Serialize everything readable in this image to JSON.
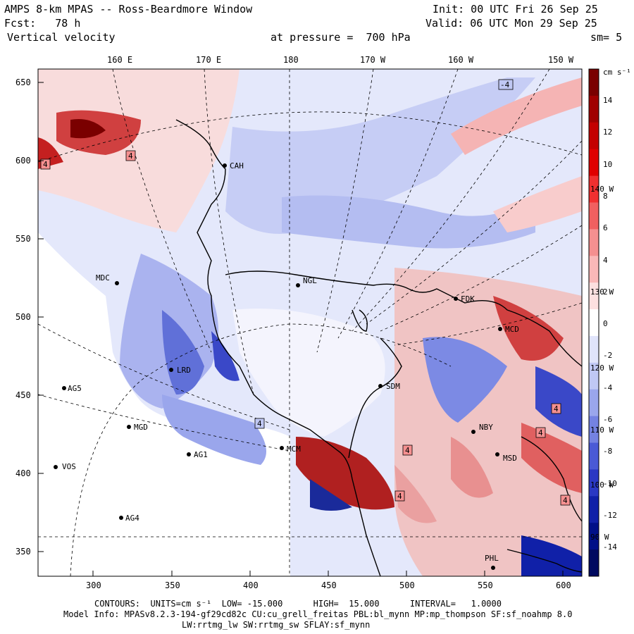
{
  "header": {
    "title": "AMPS 8-km MPAS -- Ross-Beardmore Window",
    "init": "Init: 00 UTC Fri 26 Sep 25",
    "fcst": "Fcst:   78 h",
    "valid": "Valid: 06 UTC Mon 29 Sep 25",
    "field": "Vertical velocity",
    "pressure": "at pressure =  700 hPa",
    "smooth": "sm= 5"
  },
  "top_axis": [
    "160 E",
    "170 E",
    "180",
    "170 W",
    "160 W",
    "150 W"
  ],
  "left_axis": [
    "650",
    "600",
    "550",
    "500",
    "450",
    "400",
    "350"
  ],
  "bottom_axis": [
    "300",
    "350",
    "400",
    "450",
    "500",
    "550",
    "600"
  ],
  "colorbar": {
    "units": "cm s⁻¹",
    "ticks": [
      "14",
      "12",
      "10",
      "8",
      "6",
      "4",
      "2",
      "0",
      "-2",
      "-4",
      "-6",
      "-8",
      "-10",
      "-12",
      "-14"
    ],
    "colors": [
      "#7a0000",
      "#a00000",
      "#c40000",
      "#e00000",
      "#f03030",
      "#f06060",
      "#f59090",
      "#fab8b8",
      "#fde0e0",
      "#ffffff",
      "#e0e4fb",
      "#c0c8f4",
      "#9aa6ec",
      "#7482e2",
      "#4a5ad6",
      "#2a38c4",
      "#1020a8",
      "#001088",
      "#000a60"
    ]
  },
  "meridian_labels": [
    "140 W",
    "130 W",
    "120 W",
    "110 W",
    "100 W",
    "90 W"
  ],
  "stations": [
    {
      "name": "CAH"
    },
    {
      "name": "MDC"
    },
    {
      "name": "NGL"
    },
    {
      "name": "FDK"
    },
    {
      "name": "MCD"
    },
    {
      "name": "SDM"
    },
    {
      "name": "AG5"
    },
    {
      "name": "MGD"
    },
    {
      "name": "AG1"
    },
    {
      "name": "VOS"
    },
    {
      "name": "AG4"
    },
    {
      "name": "PHL"
    },
    {
      "name": "NBY"
    },
    {
      "name": "MSD"
    },
    {
      "name": "MCM"
    },
    {
      "name": "LRD"
    }
  ],
  "box_labels": [
    "4",
    "4",
    "4",
    "4",
    "4",
    "4",
    "4",
    "4",
    "-4"
  ],
  "footer": {
    "contours": "CONTOURS:  UNITS=cm s⁻¹  LOW= -15.000      HIGH=  15.000      INTERVAL=   1.0000",
    "model_info": "Model Info: MPASv8.2.3-194-gf29cd82c CU:cu_grell_freitas PBL:bl_mynn MP:mp_thompson SF:sf_noahmp 8.0",
    "model_info2": "LW:rrtmg_lw SW:rrtmg_sw SFLAY:sf_mynn"
  }
}
